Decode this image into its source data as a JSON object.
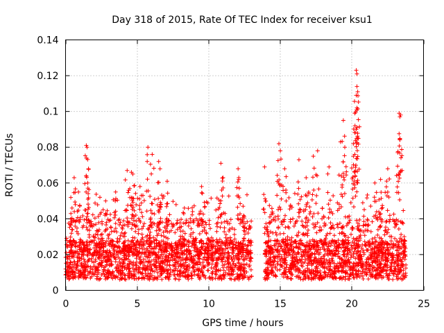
{
  "chart_data": {
    "type": "scatter",
    "title": "Day 318 of 2015, Rate Of TEC Index for receiver ksu1",
    "xlabel": "GPS time / hours",
    "ylabel": "ROTI / TECUs",
    "xlim": [
      0,
      25
    ],
    "ylim": [
      0,
      0.14
    ],
    "xticks": [
      0,
      5,
      10,
      15,
      20,
      25
    ],
    "xtick_labels": [
      "0",
      "5",
      "10",
      "15",
      "20",
      "25"
    ],
    "yticks": [
      0,
      0.02,
      0.04,
      0.06,
      0.08,
      0.1,
      0.12,
      0.14
    ],
    "ytick_labels": [
      "0",
      "0.02",
      "0.04",
      "0.06",
      "0.08",
      "0.1",
      "0.12",
      "0.14"
    ],
    "grid": true,
    "marker": "+",
    "color": "#ff0000",
    "series": [
      {
        "name": "ROTI",
        "note": "Dense band of points across the day, baseline ~0.005-0.03 TECU/s, data gap between ~13.0 and ~13.9 h",
        "data_segments": [
          {
            "x_start": 0.0,
            "x_end": 13.0
          },
          {
            "x_start": 13.9,
            "x_end": 23.8
          }
        ],
        "points": [
          [
            1.45,
            0.081
          ],
          [
            1.5,
            0.08
          ],
          [
            1.6,
            0.068
          ],
          [
            1.55,
            0.06
          ],
          [
            0.6,
            0.063
          ],
          [
            0.45,
            0.046
          ],
          [
            2.4,
            0.052
          ],
          [
            4.6,
            0.066
          ],
          [
            4.7,
            0.065
          ],
          [
            5.75,
            0.08
          ],
          [
            6.05,
            0.076
          ],
          [
            6.5,
            0.072
          ],
          [
            6.6,
            0.068
          ],
          [
            7.1,
            0.061
          ],
          [
            4.3,
            0.067
          ],
          [
            10.85,
            0.071
          ],
          [
            11.0,
            0.063
          ],
          [
            12.05,
            0.068
          ],
          [
            12.1,
            0.063
          ],
          [
            12.4,
            0.047
          ],
          [
            13.9,
            0.069
          ],
          [
            14.9,
            0.082
          ],
          [
            15.0,
            0.078
          ],
          [
            15.3,
            0.068
          ],
          [
            16.3,
            0.073
          ],
          [
            17.3,
            0.075
          ],
          [
            17.6,
            0.078
          ],
          [
            18.4,
            0.069
          ],
          [
            19.2,
            0.083
          ],
          [
            19.4,
            0.095
          ],
          [
            19.5,
            0.08
          ],
          [
            20.3,
            0.123
          ],
          [
            20.35,
            0.121
          ],
          [
            20.4,
            0.111
          ],
          [
            20.3,
            0.109
          ],
          [
            20.35,
            0.102
          ],
          [
            20.2,
            0.099
          ],
          [
            20.3,
            0.09
          ],
          [
            20.1,
            0.082
          ],
          [
            20.2,
            0.076
          ],
          [
            22.0,
            0.062
          ],
          [
            22.5,
            0.068
          ],
          [
            23.2,
            0.077
          ],
          [
            23.3,
            0.099
          ],
          [
            23.35,
            0.097
          ],
          [
            23.4,
            0.098
          ],
          [
            21.6,
            0.06
          ],
          [
            16.8,
            0.063
          ],
          [
            9.5,
            0.058
          ],
          [
            8.3,
            0.046
          ],
          [
            3.5,
            0.055
          ],
          [
            2.8,
            0.05
          ],
          [
            5.2,
            0.058
          ],
          [
            0.9,
            0.055
          ]
        ]
      }
    ]
  }
}
